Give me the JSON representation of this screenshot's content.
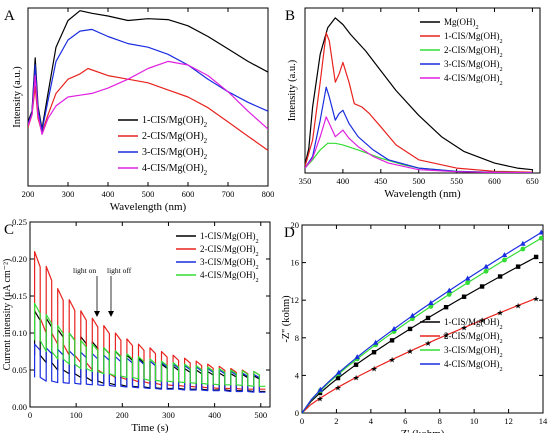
{
  "chart_data": [
    {
      "panel": "A",
      "type": "line",
      "xlabel": "Wavelength (nm)",
      "ylabel": "Intensity (a.u.)",
      "xlim": [
        200,
        800
      ],
      "ylim": [
        0,
        1
      ],
      "xticks": [
        200,
        300,
        400,
        500,
        600,
        700,
        800
      ],
      "yticks": [],
      "legend_position": "lower-right",
      "series": [
        {
          "name": "1-CIS/Mg(OH)2",
          "color": "#000000",
          "x": [
            200,
            210,
            218,
            225,
            235,
            250,
            270,
            300,
            330,
            360,
            400,
            450,
            500,
            550,
            600,
            650,
            700,
            750,
            800
          ],
          "y": [
            0.36,
            0.42,
            0.72,
            0.45,
            0.32,
            0.52,
            0.78,
            0.93,
            0.985,
            0.97,
            0.955,
            0.93,
            0.94,
            0.935,
            0.9,
            0.84,
            0.77,
            0.7,
            0.64
          ]
        },
        {
          "name": "2-CIS/Mg(OH)2",
          "color": "#e8231f",
          "x": [
            200,
            210,
            218,
            225,
            235,
            250,
            270,
            300,
            330,
            350,
            400,
            450,
            500,
            550,
            600,
            650,
            700,
            750,
            800
          ],
          "y": [
            0.33,
            0.4,
            0.56,
            0.38,
            0.3,
            0.4,
            0.52,
            0.6,
            0.63,
            0.66,
            0.62,
            0.6,
            0.58,
            0.54,
            0.5,
            0.44,
            0.36,
            0.28,
            0.2
          ]
        },
        {
          "name": "3-CIS/Mg(OH)2",
          "color": "#1a2ddf",
          "x": [
            200,
            210,
            218,
            225,
            235,
            250,
            270,
            300,
            330,
            360,
            400,
            450,
            500,
            550,
            600,
            650,
            700,
            750,
            800
          ],
          "y": [
            0.35,
            0.41,
            0.68,
            0.43,
            0.31,
            0.48,
            0.7,
            0.82,
            0.87,
            0.88,
            0.84,
            0.8,
            0.78,
            0.74,
            0.68,
            0.6,
            0.53,
            0.47,
            0.42
          ]
        },
        {
          "name": "4-CIS/Mg(OH)2",
          "color": "#e020e0",
          "x": [
            200,
            210,
            218,
            225,
            235,
            250,
            270,
            300,
            330,
            360,
            400,
            450,
            500,
            550,
            600,
            650,
            700,
            750,
            800
          ],
          "y": [
            0.34,
            0.4,
            0.62,
            0.4,
            0.29,
            0.38,
            0.45,
            0.5,
            0.51,
            0.52,
            0.55,
            0.6,
            0.66,
            0.7,
            0.68,
            0.62,
            0.53,
            0.42,
            0.32
          ]
        }
      ]
    },
    {
      "panel": "B",
      "type": "line",
      "xlabel": "Wavelength (nm)",
      "ylabel": "Intensity (a.u.)",
      "xlim": [
        350,
        660
      ],
      "ylim": [
        0,
        1
      ],
      "xticks": [
        350,
        400,
        450,
        500,
        550,
        600,
        650
      ],
      "yticks": [],
      "legend_position": "top-right",
      "series": [
        {
          "name": "Mg(OH)2",
          "color": "#000000",
          "x": [
            350,
            355,
            360,
            370,
            380,
            390,
            400,
            410,
            430,
            450,
            470,
            500,
            530,
            560,
            600,
            630,
            650
          ],
          "y": [
            0.05,
            0.15,
            0.4,
            0.72,
            0.88,
            0.94,
            0.9,
            0.84,
            0.74,
            0.62,
            0.5,
            0.35,
            0.22,
            0.13,
            0.06,
            0.03,
            0.02
          ]
        },
        {
          "name": "1-CIS/Mg(OH)2",
          "color": "#e8231f",
          "x": [
            350,
            360,
            370,
            378,
            382,
            390,
            395,
            400,
            408,
            415,
            425,
            435,
            450,
            470,
            500,
            550,
            600,
            650
          ],
          "y": [
            0.04,
            0.2,
            0.55,
            0.85,
            0.8,
            0.55,
            0.6,
            0.67,
            0.55,
            0.42,
            0.4,
            0.36,
            0.28,
            0.17,
            0.08,
            0.03,
            0.01,
            0.005
          ]
        },
        {
          "name": "2-CIS/Mg(OH)2",
          "color": "#33dd33",
          "x": [
            350,
            360,
            370,
            380,
            390,
            400,
            420,
            450,
            480,
            500,
            550,
            600,
            650
          ],
          "y": [
            0.03,
            0.08,
            0.14,
            0.18,
            0.18,
            0.17,
            0.14,
            0.09,
            0.05,
            0.03,
            0.01,
            0.005,
            0.002
          ]
        },
        {
          "name": "3-CIS/Mg(OH)2",
          "color": "#1a2ddf",
          "x": [
            350,
            360,
            370,
            378,
            382,
            390,
            395,
            400,
            408,
            420,
            440,
            460,
            500,
            550,
            600,
            650
          ],
          "y": [
            0.03,
            0.1,
            0.32,
            0.52,
            0.46,
            0.32,
            0.36,
            0.38,
            0.3,
            0.22,
            0.14,
            0.08,
            0.03,
            0.01,
            0.004,
            0.002
          ]
        },
        {
          "name": "4-CIS/Mg(OH)2",
          "color": "#e020e0",
          "x": [
            350,
            360,
            370,
            378,
            382,
            390,
            395,
            400,
            408,
            420,
            440,
            460,
            500,
            550,
            600,
            650
          ],
          "y": [
            0.03,
            0.09,
            0.22,
            0.34,
            0.3,
            0.22,
            0.24,
            0.26,
            0.21,
            0.16,
            0.1,
            0.06,
            0.02,
            0.008,
            0.003,
            0.001
          ]
        }
      ]
    },
    {
      "panel": "C",
      "type": "line",
      "xlabel": "Time (s)",
      "ylabel": "Current intensity (μA cm⁻²)",
      "xlim": [
        0,
        520
      ],
      "ylim": [
        0,
        0.25
      ],
      "xticks": [
        0,
        100,
        200,
        300,
        400,
        500
      ],
      "yticks": [
        0.0,
        0.05,
        0.1,
        0.15,
        0.2,
        0.25
      ],
      "legend_position": "top-right",
      "annotations": [
        "light on",
        "light off"
      ],
      "series": [
        {
          "name": "1-CIS/Mg(OH)2",
          "color": "#000000",
          "on": [
            0.13,
            0.12,
            0.105,
            0.1,
            0.095,
            0.088,
            0.08,
            0.075,
            0.07,
            0.066,
            0.062,
            0.058,
            0.055,
            0.052,
            0.05,
            0.048,
            0.046,
            0.045,
            0.044,
            0.042
          ],
          "off": [
            0.07,
            0.06,
            0.05,
            0.045,
            0.04,
            0.035,
            0.032,
            0.03,
            0.028,
            0.027,
            0.026,
            0.025,
            0.025,
            0.024,
            0.024,
            0.023,
            0.023,
            0.022,
            0.022,
            0.021
          ]
        },
        {
          "name": "2-CIS/Mg(OH)2",
          "color": "#e8231f",
          "on": [
            0.21,
            0.19,
            0.16,
            0.145,
            0.13,
            0.12,
            0.11,
            0.1,
            0.092,
            0.085,
            0.08,
            0.075,
            0.07,
            0.066,
            0.062,
            0.058,
            0.055,
            0.052,
            0.05,
            0.048
          ],
          "off": [
            0.12,
            0.1,
            0.085,
            0.07,
            0.06,
            0.05,
            0.045,
            0.04,
            0.037,
            0.034,
            0.032,
            0.03,
            0.029,
            0.028,
            0.027,
            0.026,
            0.025,
            0.025,
            0.024,
            0.024
          ]
        },
        {
          "name": "3-CIS/Mg(OH)2",
          "color": "#1a2ddf",
          "on": [
            0.085,
            0.08,
            0.078,
            0.076,
            0.074,
            0.072,
            0.07,
            0.068,
            0.066,
            0.064,
            0.062,
            0.06,
            0.058,
            0.056,
            0.054,
            0.052,
            0.05,
            0.048,
            0.046,
            0.044
          ],
          "off": [
            0.04,
            0.035,
            0.033,
            0.032,
            0.031,
            0.03,
            0.029,
            0.028,
            0.027,
            0.026,
            0.025,
            0.024,
            0.024,
            0.023,
            0.023,
            0.022,
            0.022,
            0.021,
            0.021,
            0.02
          ]
        },
        {
          "name": "4-CIS/Mg(OH)2",
          "color": "#33dd33",
          "on": [
            0.14,
            0.125,
            0.11,
            0.1,
            0.09,
            0.085,
            0.08,
            0.076,
            0.072,
            0.068,
            0.065,
            0.062,
            0.06,
            0.058,
            0.056,
            0.054,
            0.052,
            0.05,
            0.049,
            0.048
          ],
          "off": [
            0.09,
            0.075,
            0.065,
            0.058,
            0.052,
            0.048,
            0.045,
            0.042,
            0.04,
            0.038,
            0.036,
            0.035,
            0.034,
            0.033,
            0.032,
            0.031,
            0.03,
            0.03,
            0.029,
            0.028
          ]
        }
      ]
    },
    {
      "panel": "D",
      "type": "scatter",
      "xlabel": "Z' (kohm)",
      "ylabel": "-Z'' (kohm)",
      "xlim": [
        0,
        14
      ],
      "ylim": [
        0,
        20
      ],
      "xticks": [
        0,
        2,
        4,
        6,
        8,
        10,
        12,
        14
      ],
      "yticks": [
        0,
        4,
        8,
        12,
        16,
        20
      ],
      "legend_position": "lower-right",
      "series": [
        {
          "name": "1-CIS/Mg(OH)2",
          "color": "#000000",
          "marker": "square",
          "end_x": 13.6,
          "end_y": 16.6
        },
        {
          "name": "2-CIS/Mg(OH)2",
          "color": "#e8231f",
          "marker": "star",
          "end_x": 13.6,
          "end_y": 12.2
        },
        {
          "name": "3-CIS/Mg(OH)2",
          "color": "#33dd33",
          "marker": "circle",
          "end_x": 13.9,
          "end_y": 18.6
        },
        {
          "name": "4-CIS/Mg(OH)2",
          "color": "#1a2ddf",
          "marker": "triangle",
          "end_x": 13.9,
          "end_y": 19.2
        }
      ]
    }
  ]
}
